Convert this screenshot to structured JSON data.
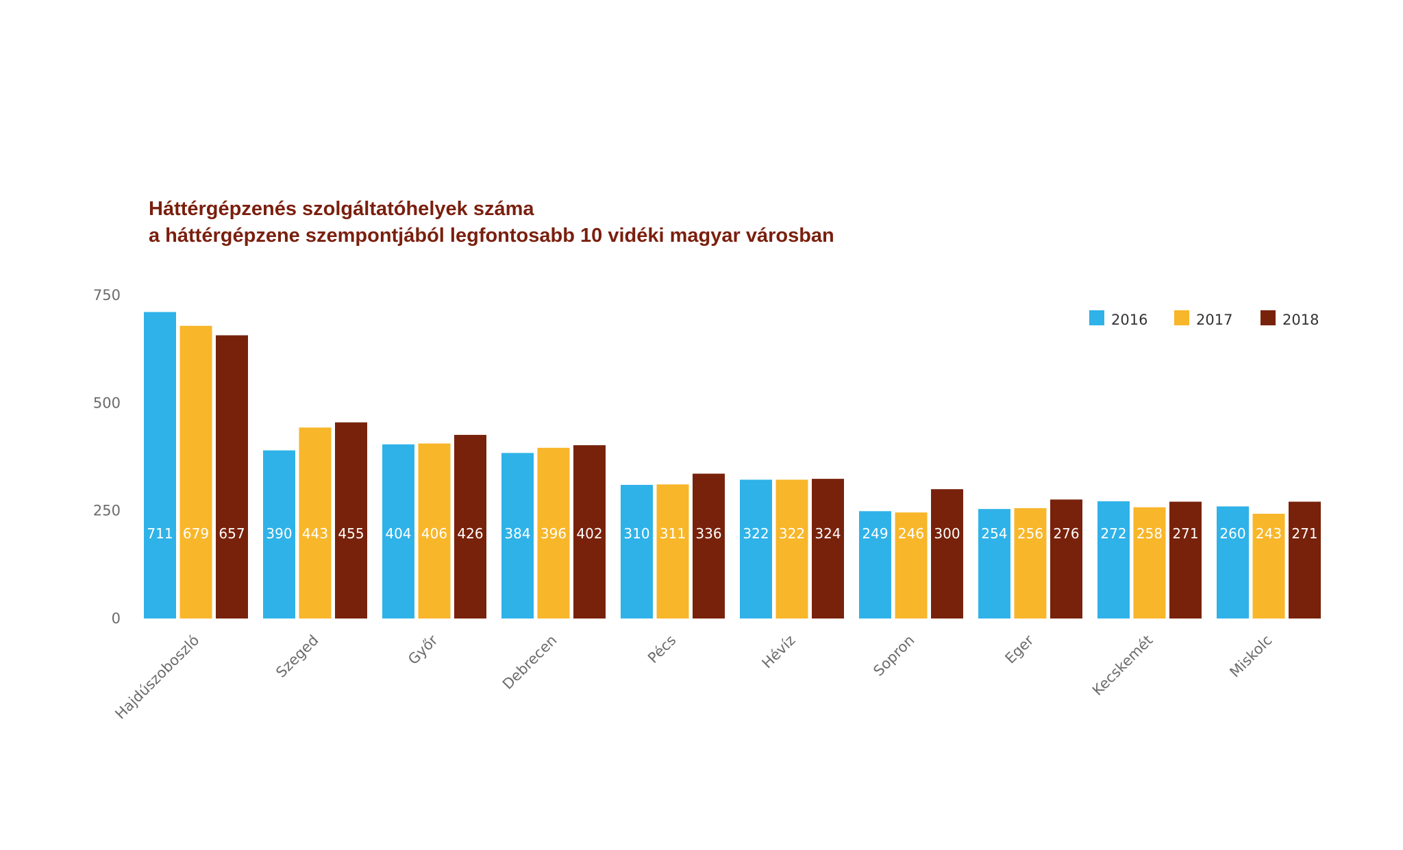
{
  "chart_data": {
    "type": "bar",
    "title_lines": [
      "Háttérgépzenés szolgáltatóhelyek száma",
      "a háttérgépzene szempontjából legfontosabb 10 vidéki magyar városban"
    ],
    "categories": [
      "Hajdúszoboszló",
      "Szeged",
      "Győr",
      "Debrecen",
      "Pécs",
      "Hévíz",
      "Sopron",
      "Eger",
      "Kecskemét",
      "Miskolc"
    ],
    "series": [
      {
        "name": "2016",
        "color": "#2fb2e8",
        "values": [
          711,
          390,
          404,
          384,
          310,
          322,
          249,
          254,
          272,
          260
        ]
      },
      {
        "name": "2017",
        "color": "#f8b62a",
        "values": [
          679,
          443,
          406,
          396,
          311,
          322,
          246,
          256,
          258,
          243
        ]
      },
      {
        "name": "2018",
        "color": "#78220c",
        "values": [
          657,
          455,
          426,
          402,
          336,
          324,
          300,
          276,
          271,
          271
        ]
      }
    ],
    "yticks": [
      0,
      250,
      500,
      750
    ],
    "ylim": [
      0,
      750
    ],
    "xlabel": "",
    "ylabel": "",
    "legend_position": "top-right",
    "grid": false,
    "title_color": "#7a1f0e",
    "data_label_color": "#ffffff"
  }
}
